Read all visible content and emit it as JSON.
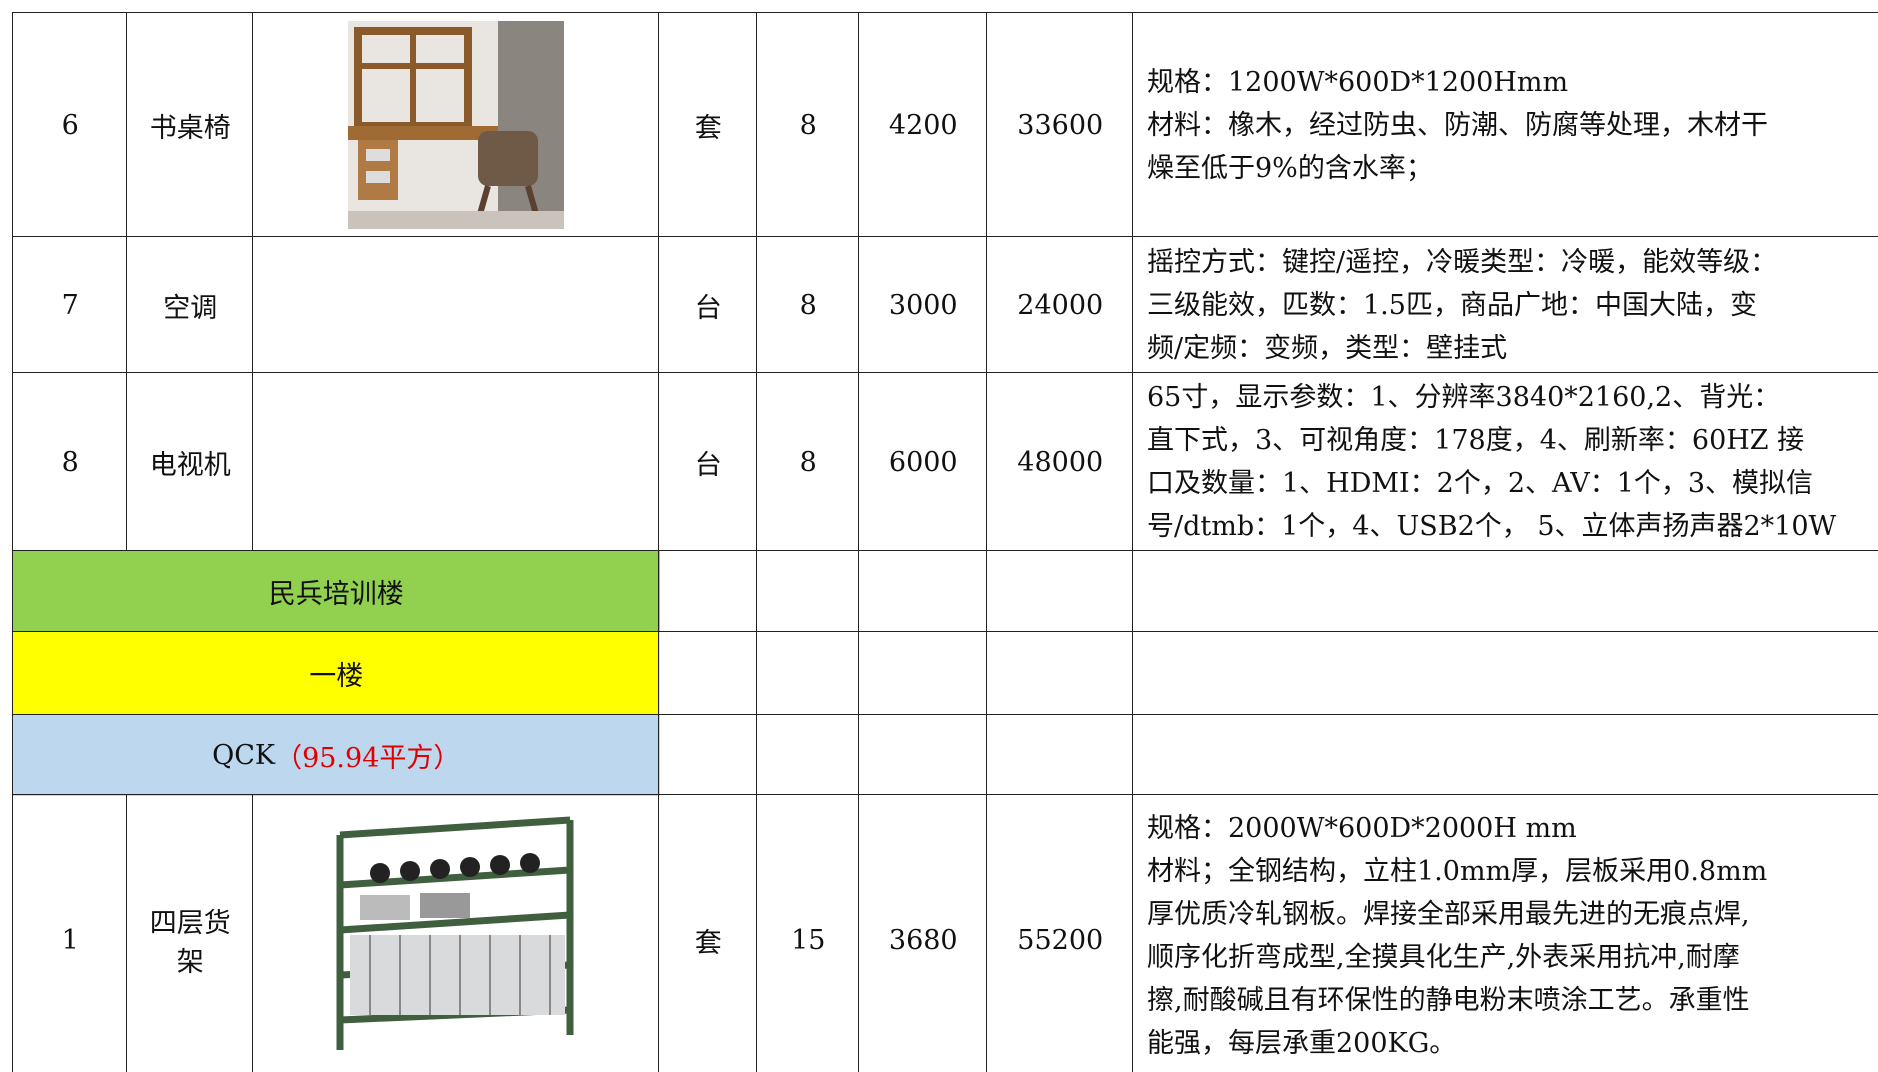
{
  "table": {
    "rows": [
      {
        "no": 6,
        "name": "书桌椅",
        "unit": "套",
        "qty": 8,
        "price": 4200,
        "total": 33600,
        "spec": [
          "规格：1200W*600D*1200Hmm",
          "材料：橡木，经过防虫、防潮、防腐等处理，木材干",
          "燥至低于9%的含水率；"
        ]
      },
      {
        "no": 7,
        "name": "空调",
        "unit": "台",
        "qty": 8,
        "price": 3000,
        "total": 24000,
        "spec": [
          "摇控方式：键控/遥控，冷暖类型：冷暖，能效等级：",
          "三级能效，匹数：1.5匹，商品广地：中国大陆，变",
          "频/定频：变频，类型：壁挂式"
        ]
      },
      {
        "no": 8,
        "name": "电视机",
        "unit": "台",
        "qty": 8,
        "price": 6000,
        "total": 48000,
        "spec": [
          "65寸，显示参数：1、分辨率3840*2160,2、背光：",
          "直下式，3、可视角度：178度，4、刷新率：60HZ 接",
          "口及数量：1、HDMI：2个，2、AV：1个，3、模拟信",
          "号/dtmb：1个，4、USB2个， 5、立体声扬声器2*10W"
        ]
      },
      {
        "section": "民兵培训楼",
        "color": "#92d050"
      },
      {
        "section": "一楼",
        "color": "#ffff00"
      },
      {
        "section": "QCK",
        "note": "（95.94平方）",
        "color": "#bdd7ee"
      },
      {
        "no": 1,
        "name": "四层货架",
        "unit": "套",
        "qty": 15,
        "price": 3680,
        "total": 55200,
        "spec": [
          "规格：2000W*600D*2000H mm",
          "材料；全钢结构，立柱1.0mm厚，层板采用0.8mm",
          "厚优质冷轧钢板。焊接全部采用最先进的无痕点焊,",
          "顺序化折弯成型,全摸具化生产,外表采用抗冲,耐摩",
          "擦,耐酸碱且有环保性的静电粉末喷涂工艺。承重性",
          "能强，每层承重200KG。"
        ]
      }
    ]
  }
}
